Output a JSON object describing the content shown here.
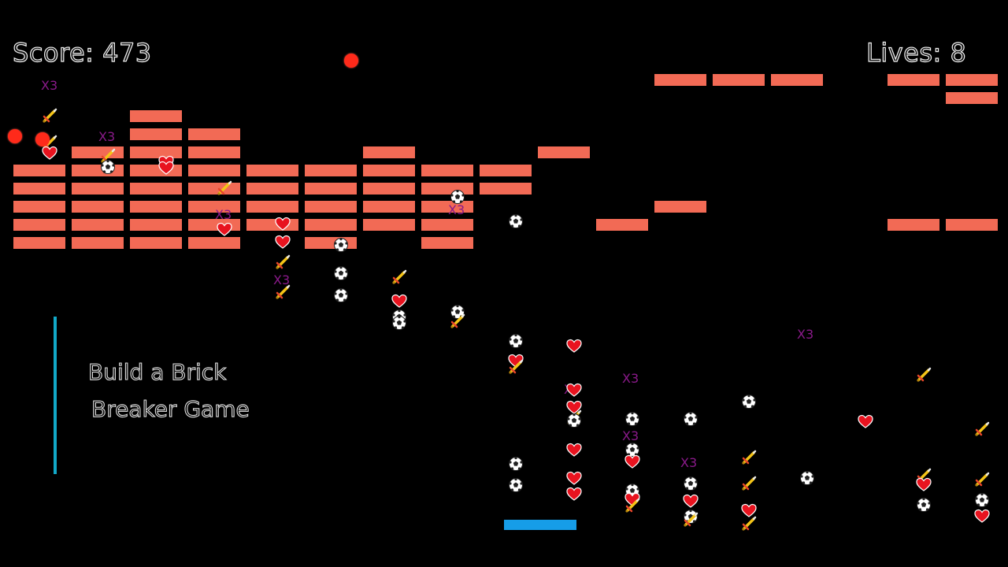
{
  "hud": {
    "score_label": "Score: 473",
    "lives_label": "Lives: 8"
  },
  "caption": {
    "line1": "Build a Brick",
    "line2": "Breaker Game"
  },
  "powerup_label": "X3",
  "colors": {
    "brick": "#f26a55",
    "paddle": "#169de8",
    "ball": "#ff2a1a",
    "accent_line": "#12a9c8",
    "multiball_text": "#8a1a8a"
  },
  "powerup_types": [
    "heart-icon",
    "soccer-ball-icon",
    "sword-icon",
    "multiball-x3"
  ]
}
